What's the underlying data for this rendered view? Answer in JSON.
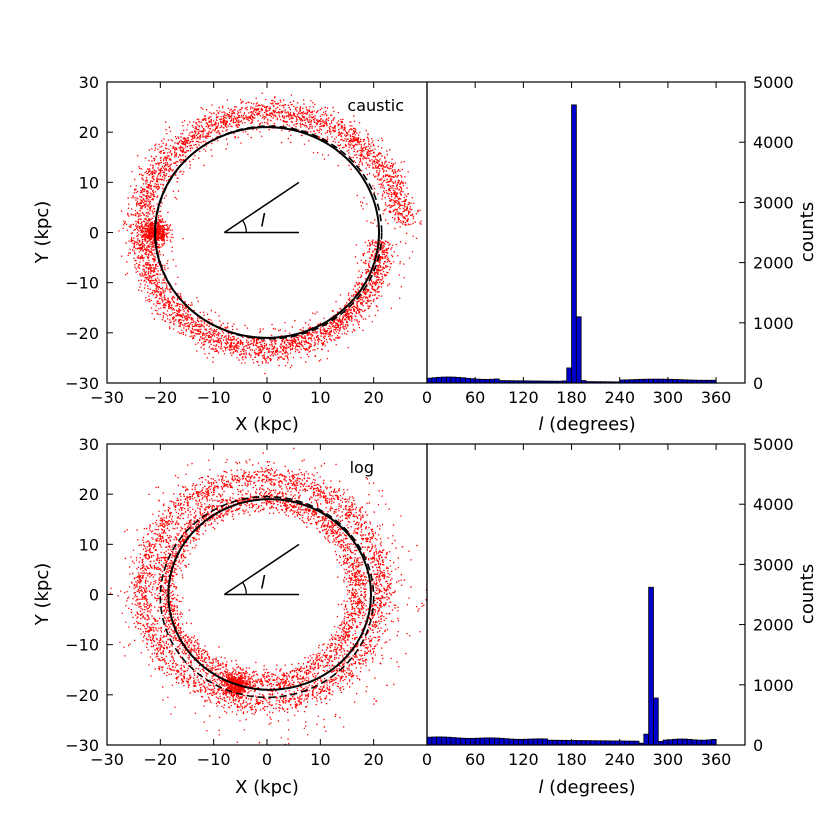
{
  "chart_data": [
    {
      "type": "scatter",
      "label": "caustic",
      "xlabel": "X (kpc)",
      "ylabel": "Y (kpc)",
      "xlim": [
        -30,
        30
      ],
      "ylim": [
        -30,
        30
      ],
      "xticks": [
        -30,
        -20,
        -10,
        0,
        10,
        20
      ],
      "yticks": [
        -30,
        -20,
        -10,
        0,
        10,
        20,
        30
      ],
      "angle_symbol": "l",
      "point_color": "#ff0000",
      "stream_ring": {
        "center": [
          0,
          0
        ],
        "radius_start": 22.5,
        "radius_end": 24.5,
        "clump": [
          -21,
          0
        ]
      },
      "orbit_solid": {
        "center": [
          0,
          0
        ],
        "radius": 21
      },
      "orbit_dashed": {
        "center": [
          0.3,
          0
        ],
        "radius": 21.2
      }
    },
    {
      "type": "bar",
      "xlabel": "l (degrees)",
      "ylabel": "counts",
      "xlim": [
        0,
        396
      ],
      "ylim": [
        0,
        5000
      ],
      "xticks": [
        0,
        60,
        120,
        180,
        240,
        300,
        360
      ],
      "yticks": [
        0,
        1000,
        2000,
        3000,
        4000,
        5000
      ],
      "bin_width": 6,
      "bar_color": "#0000cc",
      "peaks": [
        [
          168,
          35
        ],
        [
          174,
          250
        ],
        [
          180,
          4620
        ],
        [
          186,
          1100
        ],
        [
          192,
          40
        ]
      ],
      "background": "low"
    },
    {
      "type": "scatter",
      "label": "log",
      "xlabel": "X (kpc)",
      "ylabel": "Y (kpc)",
      "xlim": [
        -30,
        30
      ],
      "ylim": [
        -30,
        30
      ],
      "xticks": [
        -30,
        -20,
        -10,
        0,
        10,
        20
      ],
      "yticks": [
        -30,
        -20,
        -10,
        0,
        10,
        20,
        30
      ],
      "angle_symbol": "l",
      "point_color": "#ff0000",
      "stream_ring": {
        "center": [
          0,
          0
        ],
        "radius_inner": 16,
        "radius_outer": 24,
        "clump": [
          -6,
          -18
        ]
      },
      "orbit_solid": {
        "center": [
          0.5,
          0
        ],
        "radius": 19
      },
      "orbit_dashed": {
        "center": [
          0,
          -0.5
        ],
        "radius": 20
      }
    },
    {
      "type": "bar",
      "xlabel": "l (degrees)",
      "ylabel": "counts",
      "xlim": [
        0,
        396
      ],
      "ylim": [
        0,
        5000
      ],
      "xticks": [
        0,
        60,
        120,
        180,
        240,
        300,
        360
      ],
      "yticks": [
        0,
        1000,
        2000,
        3000,
        4000,
        5000
      ],
      "bin_width": 6,
      "bar_color": "#0000cc",
      "peaks": [
        [
          264,
          30
        ],
        [
          270,
          180
        ],
        [
          276,
          2620
        ],
        [
          282,
          780
        ],
        [
          288,
          60
        ]
      ],
      "background": "medium"
    }
  ]
}
